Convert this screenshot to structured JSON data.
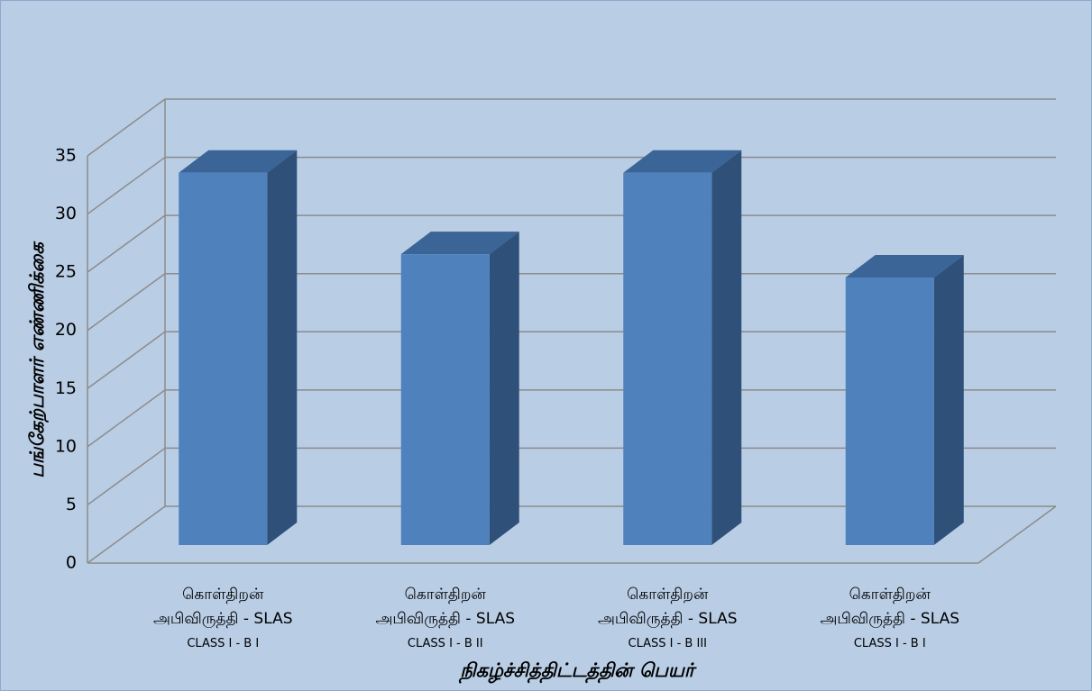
{
  "chart_data": {
    "type": "bar3d",
    "categories": [
      "கொள்திறன்\nஅபிவிருத்தி  -  SLAS\nCLASS I - B I",
      "கொள்திறன்\nஅபிவிருத்தி  -  SLAS\nCLASS I - B II",
      "கொள்திறன்\nஅபிவிருத்தி  -  SLAS\nCLASS I - B III",
      "கொள்திறன்\nஅபிவிருத்தி  -  SLAS\nCLASS I - B I"
    ],
    "values": [
      32,
      25,
      32,
      23
    ],
    "color": "#4f81bd",
    "ylim": [
      0,
      35
    ],
    "yticks": [
      0,
      5,
      10,
      15,
      20,
      25,
      30,
      35
    ],
    "grid": true,
    "xlabel": "நிகழ்ச்சித்திட்டத்தின் பெயர்",
    "ylabel": "பங்கேற்பாளர் எண்ணிக்கை"
  }
}
